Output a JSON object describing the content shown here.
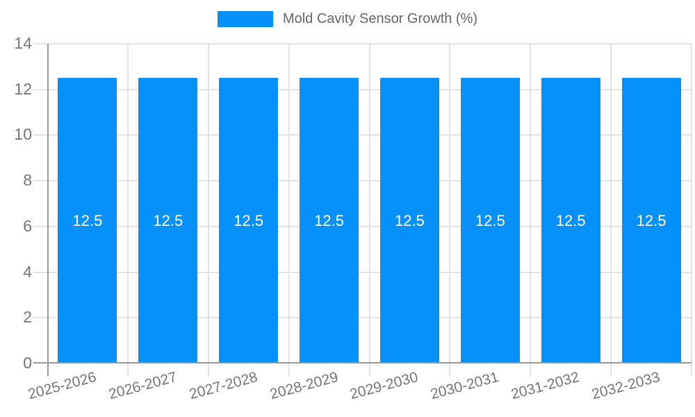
{
  "chart_data": {
    "type": "bar",
    "title": "Mold Cavity Sensor Growth (%)",
    "legend_position": "top",
    "categories": [
      "2025-2026",
      "2026-2027",
      "2027-2028",
      "2028-2029",
      "2029-2030",
      "2030-2031",
      "2031-2032",
      "2032-2033"
    ],
    "series": [
      {
        "name": "Mold Cavity Sensor Growth (%)",
        "values": [
          12.5,
          12.5,
          12.5,
          12.5,
          12.5,
          12.5,
          12.5,
          12.5
        ]
      }
    ],
    "bar_value_labels": [
      "12.5",
      "12.5",
      "12.5",
      "12.5",
      "12.5",
      "12.5",
      "12.5",
      "12.5"
    ],
    "xlabel": "",
    "ylabel": "",
    "ylim": [
      0,
      14
    ],
    "yticks": [
      0,
      2,
      4,
      6,
      8,
      10,
      12,
      14
    ],
    "grid": true,
    "colors": {
      "bar": "#0690fa",
      "axis": "#999999",
      "gridline": "#e3e3e3",
      "tick_label": "#757575",
      "bar_label": "#ffffff",
      "legend_text": "#666666"
    }
  }
}
